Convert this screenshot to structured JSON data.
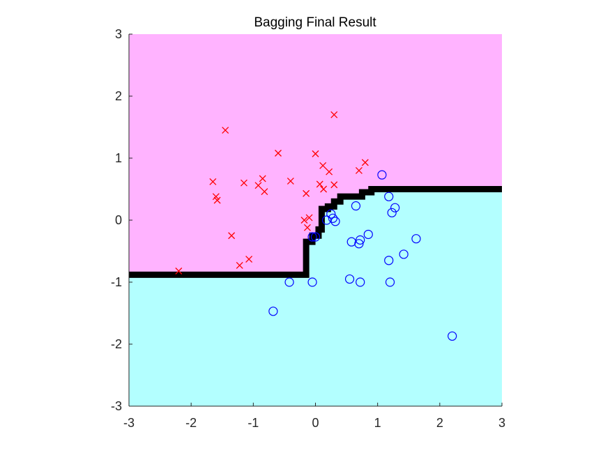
{
  "chart_data": {
    "type": "scatter",
    "title": "Bagging Final Result",
    "xlabel": "",
    "ylabel": "",
    "xlim": [
      -3,
      3
    ],
    "ylim": [
      -3,
      3
    ],
    "x_ticks": [
      "-3",
      "-2",
      "-1",
      "0",
      "1",
      "2",
      "3"
    ],
    "y_ticks": [
      "-3",
      "-2",
      "-1",
      "0",
      "1",
      "2",
      "3"
    ],
    "grid": false,
    "legend": "none",
    "colors": {
      "upper_region": "#ffb3ff",
      "lower_region": "#b3ffff",
      "boundary": "#000000",
      "class_x": "#ff0000",
      "class_o": "#0000ff"
    },
    "decision_boundary": {
      "x": [
        -3,
        -0.15,
        -0.15,
        -0.05,
        -0.05,
        0.05,
        0.05,
        0.1,
        0.1,
        0.2,
        0.2,
        0.3,
        0.3,
        0.4,
        0.4,
        0.75,
        0.75,
        0.9,
        0.9,
        3
      ],
      "y": [
        -0.88,
        -0.88,
        -0.35,
        -0.35,
        -0.25,
        -0.25,
        -0.15,
        -0.15,
        0.18,
        0.18,
        0.22,
        0.22,
        0.3,
        0.3,
        0.38,
        0.38,
        0.45,
        0.45,
        0.5,
        0.5
      ]
    },
    "series": [
      {
        "marker": "x",
        "points": [
          [
            -2.2,
            -0.82
          ],
          [
            -1.65,
            0.62
          ],
          [
            -1.6,
            0.38
          ],
          [
            -1.58,
            0.32
          ],
          [
            -1.45,
            1.45
          ],
          [
            -1.35,
            -0.25
          ],
          [
            -1.22,
            -0.73
          ],
          [
            -1.15,
            0.6
          ],
          [
            -1.07,
            -0.63
          ],
          [
            -0.92,
            0.56
          ],
          [
            -0.85,
            0.67
          ],
          [
            -0.82,
            0.46
          ],
          [
            -0.6,
            1.08
          ],
          [
            -0.4,
            0.63
          ],
          [
            -0.15,
            0.43
          ],
          [
            -0.18,
            0.0
          ],
          [
            -0.13,
            -0.12
          ],
          [
            -0.1,
            0.04
          ],
          [
            0.0,
            1.07
          ],
          [
            0.07,
            0.58
          ],
          [
            0.12,
            0.88
          ],
          [
            0.13,
            0.5
          ],
          [
            0.22,
            0.78
          ],
          [
            0.3,
            0.57
          ],
          [
            0.3,
            1.7
          ],
          [
            0.7,
            0.8
          ],
          [
            0.8,
            0.93
          ]
        ]
      },
      {
        "marker": "o",
        "points": [
          [
            -0.68,
            -1.47
          ],
          [
            -0.42,
            -1.0
          ],
          [
            -0.05,
            -1.0
          ],
          [
            -0.05,
            -0.27
          ],
          [
            0.0,
            -0.27
          ],
          [
            0.18,
            0.0
          ],
          [
            0.25,
            0.1
          ],
          [
            0.28,
            0.03
          ],
          [
            0.32,
            -0.02
          ],
          [
            0.55,
            -0.95
          ],
          [
            0.58,
            -0.35
          ],
          [
            0.65,
            0.23
          ],
          [
            0.7,
            -0.38
          ],
          [
            0.72,
            -0.32
          ],
          [
            0.72,
            -1.0
          ],
          [
            0.85,
            -0.23
          ],
          [
            1.07,
            0.73
          ],
          [
            1.18,
            0.38
          ],
          [
            1.18,
            -0.65
          ],
          [
            1.2,
            -1.0
          ],
          [
            1.23,
            0.12
          ],
          [
            1.28,
            0.2
          ],
          [
            1.42,
            -0.55
          ],
          [
            1.62,
            -0.3
          ],
          [
            2.2,
            -1.87
          ]
        ]
      }
    ]
  }
}
